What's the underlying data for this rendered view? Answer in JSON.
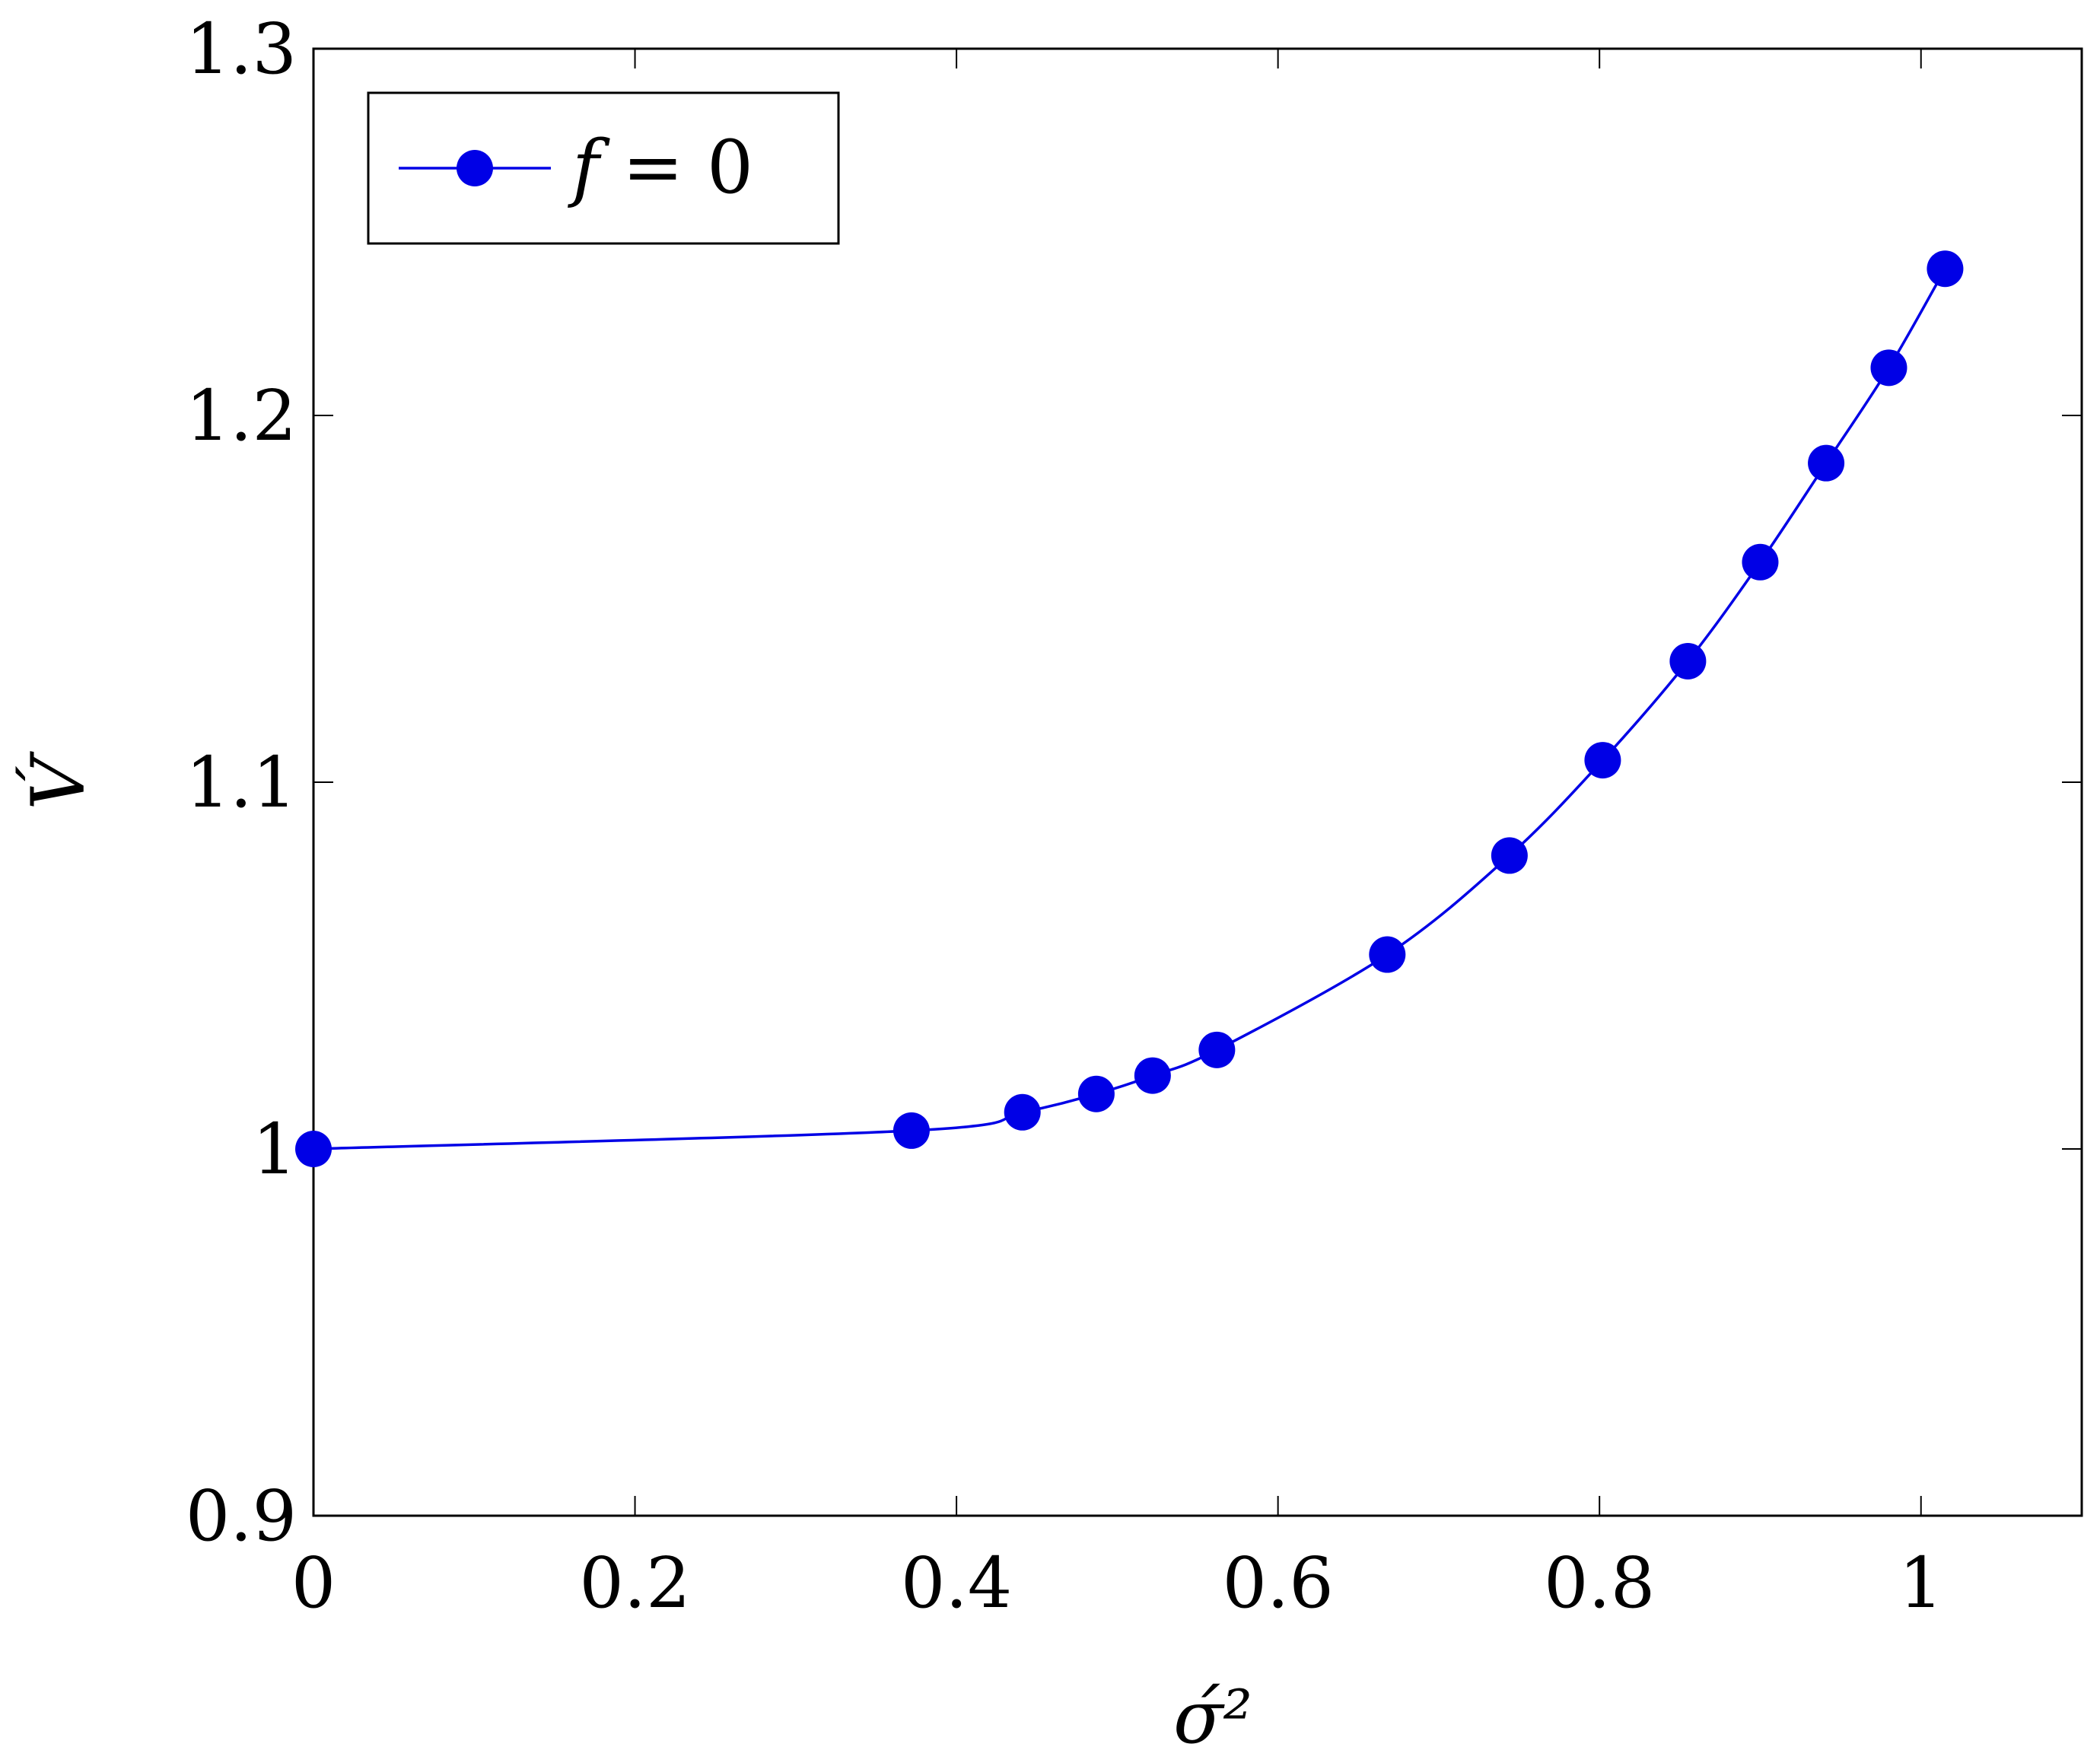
{
  "chart_data": {
    "type": "line",
    "xlabel": "σ́²",
    "ylabel": "V́",
    "xlim": [
      0,
      1.1
    ],
    "ylim": [
      0.9,
      1.3
    ],
    "x_ticks": [
      {
        "value": 0,
        "label": "0"
      },
      {
        "value": 0.2,
        "label": "0.2"
      },
      {
        "value": 0.4,
        "label": "0.4"
      },
      {
        "value": 0.6,
        "label": "0.6"
      },
      {
        "value": 0.8,
        "label": "0.8"
      },
      {
        "value": 1.0,
        "label": "1"
      }
    ],
    "y_ticks": [
      {
        "value": 0.9,
        "label": "0.9"
      },
      {
        "value": 1.0,
        "label": "1"
      },
      {
        "value": 1.1,
        "label": "1.1"
      },
      {
        "value": 1.2,
        "label": "1.2"
      },
      {
        "value": 1.3,
        "label": "1.3"
      }
    ],
    "grid": false,
    "legend_position": "top-left",
    "series": [
      {
        "name_var": "f",
        "name_rest": " = 0",
        "color": "#0000e6",
        "marker": "circle",
        "smooth": true,
        "points": [
          {
            "x": 0.0,
            "y": 1.0
          },
          {
            "x": 0.372,
            "y": 1.005
          },
          {
            "x": 0.441,
            "y": 1.01
          },
          {
            "x": 0.487,
            "y": 1.015
          },
          {
            "x": 0.522,
            "y": 1.02
          },
          {
            "x": 0.562,
            "y": 1.027
          },
          {
            "x": 0.668,
            "y": 1.053
          },
          {
            "x": 0.744,
            "y": 1.08
          },
          {
            "x": 0.802,
            "y": 1.106
          },
          {
            "x": 0.855,
            "y": 1.133
          },
          {
            "x": 0.9,
            "y": 1.16
          },
          {
            "x": 0.941,
            "y": 1.187
          },
          {
            "x": 0.98,
            "y": 1.213
          },
          {
            "x": 1.015,
            "y": 1.24
          }
        ]
      }
    ]
  }
}
